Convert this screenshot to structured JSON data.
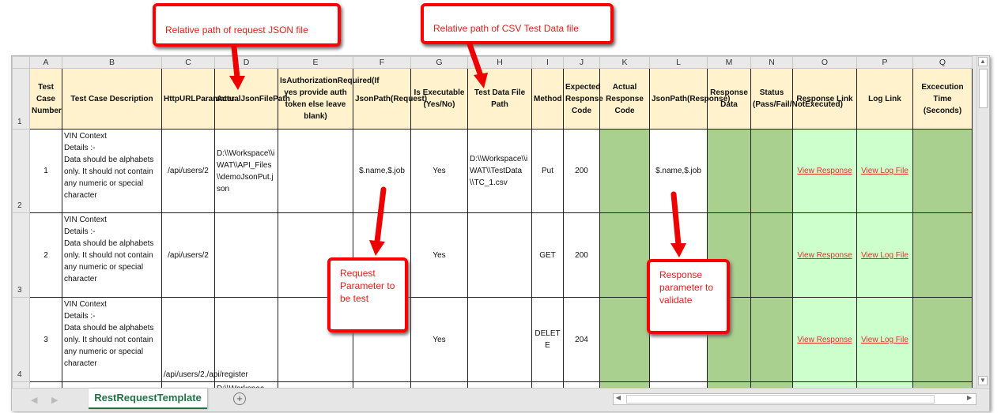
{
  "columns": [
    "A",
    "B",
    "C",
    "D",
    "E",
    "F",
    "G",
    "H",
    "I",
    "J",
    "K",
    "L",
    "M",
    "N",
    "O",
    "P",
    "Q"
  ],
  "row_numbers": [
    "1",
    "2",
    "3",
    "4"
  ],
  "headers": [
    "Test Case Number",
    "Test Case Description",
    "HttpURLParamater",
    "ActualJsonFilePath",
    "IsAuthorizationRequired(If yes provide auth token else leave blank)",
    "JsonPath(Request)",
    "Is Executable (Yes/No)",
    "Test Data File Path",
    "Method",
    "Expected Response Code",
    "Actual Response Code",
    "JsonPath(Response)",
    "Response Data",
    "Status (Pass/Fail/NotExecuted)",
    "Response Link",
    "Log Link",
    "Excecution Time (Seconds)"
  ],
  "rows": [
    [
      "1",
      "VIN Context\nDetails :-\nData should be alphabets only. It should not contain any numeric or special character",
      "/api/users/2",
      "D:\\\\Workspace\\\\iWAT\\\\API_Files\\\\demoJsonPut.json",
      "",
      "$.name,$.job",
      "Yes",
      "D:\\\\Workspace\\\\iWAT\\\\TestData\\\\TC_1.csv",
      "Put",
      "200",
      "",
      "$.name,$.job",
      "",
      "",
      "View Response",
      "View Log File",
      ""
    ],
    [
      "2",
      "VIN Context\nDetails :-\nData should be alphabets only. It should not contain any numeric or special character",
      "/api/users/2",
      "",
      "",
      "",
      "Yes",
      "",
      "GET",
      "200",
      "",
      "",
      "",
      "",
      "View Response",
      "View Log File",
      ""
    ],
    [
      "3",
      "VIN Context\nDetails :-\nData should be alphabets only. It should not contain any numeric or special character",
      "/api/users/2,/api/register",
      "",
      "",
      "",
      "Yes",
      "",
      "DELETE",
      "204",
      "",
      "",
      "",
      "",
      "View Response",
      "View Log File",
      ""
    ]
  ],
  "partial_row": {
    "D": "D:\\\\Workspac"
  },
  "sheet_tab": "RestRequestTemplate",
  "add_sheet": "+",
  "callouts": {
    "json_path": "Relative path of request JSON file",
    "csv_path": "Relative path of CSV Test Data file",
    "request_param": "Request Parameter to be test",
    "response_param": "Response parameter to validate"
  },
  "colors": {
    "header": "#fff2cc",
    "result_dark": "#a9d08e",
    "result_light": "#ccffcc",
    "link": "#e0312c",
    "callout": "#ff0000",
    "tab": "#217346"
  }
}
